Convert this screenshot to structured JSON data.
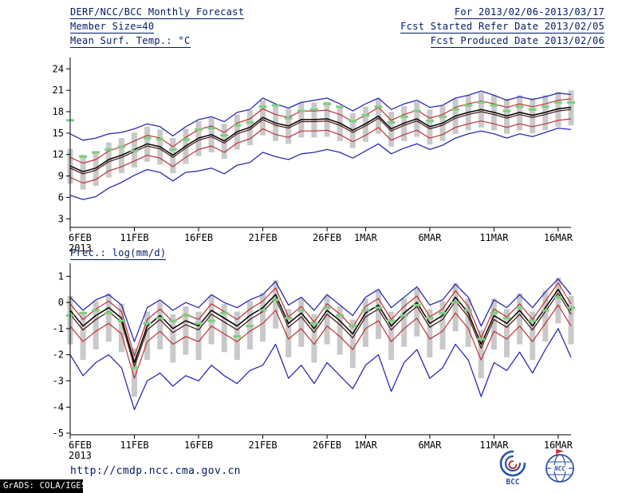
{
  "header": {
    "title": "DERF/NCC/BCC Monthly Forecast",
    "member_size": "Member Size=40",
    "for_range": "For 2013/02/06-2013/03/17",
    "refer_date": "Fcst Started Refer Date 2013/02/05",
    "produced_date": "Fcst Produced Date 2013/02/06"
  },
  "footer": {
    "url": "http://cmdp.ncc.cma.gov.cn",
    "grads_credit": "GrADS: COLA/IGES",
    "bcc_logo_label": "BCC",
    "ncc_logo_label": "NCC"
  },
  "colors": {
    "header_text": "#001a66",
    "axis": "#000000",
    "ensemble_max_min": "#2a2ab4",
    "ensemble_quartiles": "#c03232",
    "ensemble_mean": "#000000",
    "ensemble_median": "#4a1212",
    "observation_dash": "#7fce7f",
    "spread_bar": "#c9c9c9"
  },
  "chart_data": [
    {
      "type": "line",
      "title": "Mean Surf. Temp.: °C",
      "x_range_label": "2013/02/06-2013/03/17",
      "xlabel": "",
      "ylabel": "°C",
      "ylim": [
        1.8,
        25.6
      ],
      "yticks": [
        3,
        6,
        9,
        12,
        15,
        18,
        21,
        24
      ],
      "xticks": [
        {
          "i": 0,
          "label": "6FEB",
          "sub": "2013"
        },
        {
          "i": 5,
          "label": "11FEB"
        },
        {
          "i": 10,
          "label": "16FEB"
        },
        {
          "i": 15,
          "label": "21FEB"
        },
        {
          "i": 20,
          "label": "26FEB"
        },
        {
          "i": 23,
          "label": "1MAR"
        },
        {
          "i": 28,
          "label": "6MAR"
        },
        {
          "i": 33,
          "label": "11MAR"
        },
        {
          "i": 38,
          "label": "16MAR"
        }
      ],
      "bars": {
        "name": "ensemble-spread",
        "color": "#c9c9c9",
        "low": [
          7.9,
          7.1,
          7.6,
          8.8,
          9.4,
          10.2,
          11.0,
          10.6,
          9.4,
          10.7,
          11.8,
          12.3,
          11.4,
          12.7,
          13.3,
          14.7,
          13.9,
          13.5,
          14.4,
          14.4,
          14.5,
          13.9,
          12.9,
          13.8,
          14.9,
          13.1,
          13.9,
          14.5,
          13.4,
          13.9,
          14.9,
          15.4,
          15.8,
          15.4,
          14.9,
          15.4,
          15.0,
          15.4,
          15.9,
          16.1
        ],
        "high": [
          12.8,
          12.0,
          12.5,
          13.7,
          14.3,
          15.1,
          15.9,
          15.5,
          14.3,
          15.6,
          16.7,
          17.2,
          16.3,
          17.6,
          18.2,
          19.6,
          18.8,
          18.4,
          19.3,
          19.3,
          19.4,
          18.8,
          17.8,
          18.7,
          19.8,
          18.0,
          18.8,
          19.4,
          18.3,
          18.8,
          19.8,
          20.3,
          20.7,
          20.3,
          19.8,
          20.3,
          19.9,
          20.3,
          20.8,
          21.0
        ]
      },
      "lines": [
        {
          "name": "ensemble-max",
          "color": "#2a2ab4",
          "width": 1.3,
          "values": [
            14.9,
            14.0,
            14.3,
            14.9,
            15.1,
            15.6,
            16.3,
            15.9,
            14.6,
            15.9,
            16.9,
            17.3,
            16.6,
            17.9,
            18.3,
            19.9,
            19.1,
            18.5,
            19.3,
            19.6,
            19.9,
            19.1,
            18.1,
            19.1,
            19.9,
            18.3,
            19.1,
            19.6,
            18.6,
            18.9,
            19.9,
            20.3,
            20.9,
            20.3,
            19.6,
            20.1,
            19.7,
            20.1,
            20.6,
            20.4
          ]
        },
        {
          "name": "upper-quartile",
          "color": "#c03232",
          "width": 1.2,
          "values": [
            11.6,
            10.8,
            11.3,
            12.5,
            13.1,
            13.9,
            14.7,
            14.3,
            13.1,
            14.4,
            15.5,
            16.0,
            15.1,
            16.4,
            17.0,
            18.4,
            17.6,
            17.2,
            18.1,
            18.1,
            18.2,
            17.6,
            16.6,
            17.5,
            18.6,
            16.8,
            17.6,
            18.2,
            17.1,
            17.6,
            18.6,
            19.1,
            19.5,
            19.1,
            18.6,
            19.1,
            18.7,
            19.1,
            19.6,
            19.8
          ]
        },
        {
          "name": "ensemble-mean",
          "color": "#000000",
          "width": 1.5,
          "values": [
            10.4,
            9.6,
            10.1,
            11.3,
            11.9,
            12.7,
            13.5,
            13.1,
            11.9,
            13.2,
            14.3,
            14.8,
            13.9,
            15.2,
            15.8,
            17.2,
            16.4,
            16.0,
            16.9,
            16.9,
            17.0,
            16.4,
            15.4,
            16.3,
            17.4,
            15.6,
            16.4,
            17.0,
            15.9,
            16.4,
            17.4,
            17.9,
            18.3,
            17.9,
            17.4,
            17.9,
            17.5,
            17.9,
            18.4,
            18.6
          ]
        },
        {
          "name": "ensemble-median",
          "color": "#4a1212",
          "width": 1.2,
          "values": [
            10.1,
            9.3,
            9.8,
            11.0,
            11.6,
            12.4,
            13.2,
            12.8,
            11.6,
            12.9,
            14.0,
            14.5,
            13.6,
            14.9,
            15.5,
            16.9,
            16.1,
            15.7,
            16.6,
            16.6,
            16.7,
            16.1,
            15.1,
            16.0,
            17.1,
            15.3,
            16.1,
            16.7,
            15.6,
            16.1,
            17.1,
            17.6,
            18.0,
            17.6,
            17.1,
            17.6,
            17.2,
            17.6,
            18.1,
            18.3
          ]
        },
        {
          "name": "lower-quartile",
          "color": "#c03232",
          "width": 1.2,
          "values": [
            8.8,
            8.0,
            8.5,
            9.7,
            10.3,
            11.1,
            11.9,
            11.5,
            10.3,
            11.6,
            12.7,
            13.2,
            12.3,
            13.6,
            14.2,
            15.6,
            14.8,
            14.4,
            15.3,
            15.3,
            15.4,
            14.8,
            13.8,
            14.7,
            15.8,
            14.0,
            14.8,
            15.4,
            14.3,
            14.8,
            15.8,
            16.3,
            16.7,
            16.3,
            15.8,
            16.3,
            15.9,
            16.3,
            16.8,
            17.0
          ]
        },
        {
          "name": "ensemble-min",
          "color": "#2a2ab4",
          "width": 1.3,
          "values": [
            6.3,
            5.7,
            6.1,
            7.3,
            8.1,
            9.1,
            9.9,
            9.5,
            8.3,
            9.5,
            9.7,
            10.1,
            9.3,
            10.5,
            10.9,
            12.3,
            11.7,
            11.3,
            12.1,
            12.3,
            12.7,
            12.3,
            11.5,
            12.5,
            13.5,
            12.1,
            12.9,
            13.5,
            12.7,
            13.3,
            14.3,
            14.9,
            15.3,
            14.9,
            14.3,
            14.9,
            14.5,
            15.1,
            15.7,
            15.5
          ]
        }
      ],
      "obs": {
        "name": "observation",
        "color": "#7fce7f",
        "values": [
          16.8,
          11.7,
          12.3,
          12.7,
          13.1,
          12.5,
          14.3,
          14.1,
          12.7,
          14.1,
          15.5,
          15.7,
          14.7,
          16.1,
          16.5,
          18.7,
          18.9,
          17.1,
          18.1,
          18.3,
          19.1,
          18.7,
          16.7,
          17.5,
          18.7,
          16.5,
          17.3,
          18.1,
          16.7,
          17.3,
          18.3,
          18.9,
          19.3,
          18.9,
          18.1,
          18.7,
          18.3,
          18.7,
          19.3,
          19.3
        ]
      }
    },
    {
      "type": "line",
      "title": "Prec.: log(mm/d)",
      "x_range_label": "2013/02/06-2013/03/17",
      "xlabel": "",
      "ylabel": "log(mm/d)",
      "ylim": [
        -5.06,
        1.5
      ],
      "yticks": [
        -5,
        -4,
        -3,
        -2,
        -1,
        0,
        1
      ],
      "xticks": [
        {
          "i": 0,
          "label": "6FEB",
          "sub": "2013"
        },
        {
          "i": 5,
          "label": "11FEB"
        },
        {
          "i": 10,
          "label": "16FEB"
        },
        {
          "i": 15,
          "label": "21FEB"
        },
        {
          "i": 20,
          "label": "26FEB"
        },
        {
          "i": 23,
          "label": "1MAR"
        },
        {
          "i": 28,
          "label": "6MAR"
        },
        {
          "i": 33,
          "label": "11MAR"
        },
        {
          "i": 38,
          "label": "16MAR"
        }
      ],
      "bars": {
        "name": "ensemble-spread",
        "color": "#c9c9c9",
        "low": [
          -1.6,
          -2.2,
          -1.8,
          -1.5,
          -1.9,
          -3.6,
          -2.2,
          -1.8,
          -2.3,
          -2.0,
          -2.2,
          -1.6,
          -1.9,
          -2.2,
          -1.8,
          -1.5,
          -1.0,
          -2.1,
          -1.7,
          -2.3,
          -1.6,
          -2.0,
          -2.5,
          -1.7,
          -1.4,
          -2.2,
          -1.7,
          -1.3,
          -2.1,
          -1.8,
          -1.1,
          -1.7,
          -2.9,
          -1.8,
          -2.1,
          -1.6,
          -2.2,
          -1.5,
          -0.8,
          -1.6
        ],
        "high": [
          0.25,
          -0.35,
          0.05,
          0.35,
          -0.05,
          -1.75,
          -0.35,
          0.05,
          -0.45,
          -0.15,
          -0.35,
          0.25,
          -0.05,
          -0.35,
          0.05,
          0.35,
          0.85,
          -0.25,
          0.15,
          -0.45,
          0.25,
          -0.15,
          -0.65,
          0.15,
          0.45,
          -0.35,
          0.15,
          0.55,
          -0.25,
          0.05,
          0.75,
          0.15,
          -1.05,
          0.15,
          -0.25,
          0.35,
          -0.35,
          0.45,
          0.95,
          0.25
        ]
      },
      "lines": [
        {
          "name": "ensemble-max",
          "color": "#2a2ab4",
          "width": 1.3,
          "values": [
            0.2,
            -0.3,
            0.1,
            0.3,
            -0.1,
            -1.5,
            -0.2,
            0.1,
            -0.3,
            0.0,
            -0.2,
            0.3,
            0.0,
            -0.2,
            0.1,
            0.3,
            0.8,
            -0.1,
            0.2,
            -0.3,
            0.3,
            -0.1,
            -0.5,
            0.2,
            0.5,
            -0.2,
            0.2,
            0.6,
            -0.1,
            0.1,
            0.7,
            0.2,
            -0.9,
            0.1,
            -0.2,
            0.3,
            -0.2,
            0.4,
            0.9,
            0.3
          ]
        },
        {
          "name": "upper-quartile",
          "color": "#c03232",
          "width": 1.2,
          "values": [
            -0.05,
            -0.65,
            -0.25,
            0.05,
            -0.35,
            -2.05,
            -0.65,
            -0.25,
            -0.75,
            -0.45,
            -0.65,
            -0.05,
            -0.35,
            -0.65,
            -0.25,
            0.05,
            0.55,
            -0.55,
            -0.15,
            -0.75,
            -0.05,
            -0.45,
            -0.95,
            -0.15,
            0.15,
            -0.65,
            -0.15,
            0.25,
            -0.55,
            -0.25,
            0.45,
            -0.15,
            -1.35,
            -0.25,
            -0.55,
            -0.05,
            -0.65,
            0.05,
            0.75,
            -0.05
          ]
        },
        {
          "name": "ensemble-mean",
          "color": "#000000",
          "width": 1.5,
          "values": [
            -0.3,
            -0.9,
            -0.5,
            -0.2,
            -0.6,
            -2.3,
            -0.9,
            -0.5,
            -1.0,
            -0.7,
            -0.9,
            -0.3,
            -0.6,
            -0.9,
            -0.5,
            -0.2,
            0.3,
            -0.8,
            -0.4,
            -1.0,
            -0.3,
            -0.7,
            -1.2,
            -0.4,
            -0.1,
            -0.9,
            -0.4,
            0.0,
            -0.8,
            -0.5,
            0.2,
            -0.4,
            -1.6,
            -0.5,
            -0.8,
            -0.3,
            -0.9,
            -0.2,
            0.5,
            -0.3
          ]
        },
        {
          "name": "ensemble-median",
          "color": "#4a1212",
          "width": 1.2,
          "values": [
            -0.45,
            -1.05,
            -0.65,
            -0.35,
            -0.75,
            -2.45,
            -1.05,
            -0.65,
            -1.15,
            -0.85,
            -1.05,
            -0.45,
            -0.75,
            -1.05,
            -0.65,
            -0.35,
            0.15,
            -0.95,
            -0.55,
            -1.15,
            -0.45,
            -0.85,
            -1.35,
            -0.55,
            -0.25,
            -1.05,
            -0.55,
            -0.15,
            -0.95,
            -0.65,
            0.05,
            -0.55,
            -1.75,
            -0.65,
            -0.95,
            -0.45,
            -1.05,
            -0.35,
            0.35,
            -0.45
          ]
        },
        {
          "name": "lower-quartile",
          "color": "#c03232",
          "width": 1.2,
          "values": [
            -0.9,
            -1.5,
            -1.1,
            -0.8,
            -1.2,
            -2.9,
            -1.5,
            -1.1,
            -1.6,
            -1.3,
            -1.5,
            -0.9,
            -1.2,
            -1.5,
            -1.1,
            -0.8,
            -0.3,
            -1.4,
            -1.0,
            -1.6,
            -0.9,
            -1.3,
            -1.8,
            -1.0,
            -0.7,
            -1.5,
            -1.0,
            -0.6,
            -1.4,
            -1.1,
            -0.4,
            -1.0,
            -2.2,
            -1.1,
            -1.4,
            -0.9,
            -1.5,
            -0.8,
            -0.1,
            -0.9
          ]
        },
        {
          "name": "ensemble-min",
          "color": "#2a2ab4",
          "width": 1.3,
          "values": [
            -2.0,
            -2.8,
            -2.3,
            -2.0,
            -2.5,
            -4.1,
            -3.0,
            -2.7,
            -3.2,
            -2.8,
            -3.0,
            -2.4,
            -2.8,
            -3.1,
            -2.6,
            -2.4,
            -1.6,
            -2.9,
            -2.4,
            -3.1,
            -2.3,
            -2.8,
            -3.3,
            -2.4,
            -2.0,
            -3.4,
            -2.3,
            -1.8,
            -2.9,
            -2.5,
            -1.6,
            -2.2,
            -3.6,
            -2.3,
            -2.6,
            -1.9,
            -2.7,
            -1.8,
            -1.0,
            -2.1
          ]
        }
      ],
      "obs": {
        "name": "observation",
        "color": "#7fce7f",
        "values": [
          -0.5,
          -0.4,
          -0.3,
          -0.4,
          -0.7,
          -2.5,
          -0.8,
          -0.6,
          -0.7,
          -0.5,
          -0.8,
          -0.7,
          -0.4,
          -1.3,
          -0.9,
          -0.3,
          0.1,
          -0.6,
          -0.3,
          -0.8,
          -0.2,
          -0.5,
          -0.9,
          -0.3,
          -0.2,
          -0.7,
          -0.5,
          -0.1,
          -0.6,
          -0.4,
          0.0,
          -0.3,
          -1.4,
          -0.4,
          -0.6,
          -0.2,
          -0.7,
          -0.3,
          0.2,
          -0.2
        ]
      }
    }
  ]
}
